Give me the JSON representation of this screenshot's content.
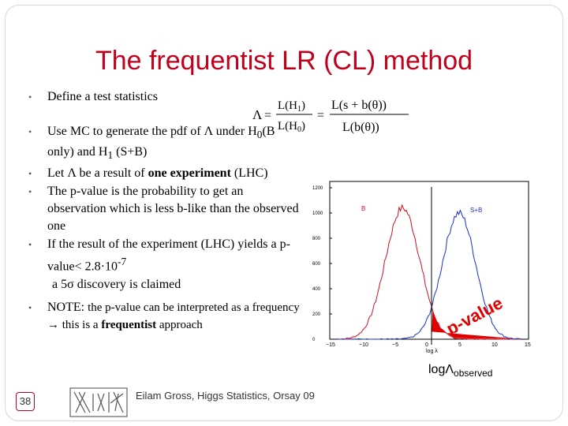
{
  "slide": {
    "title": "The frequentist LR (CL) method",
    "number": "38",
    "footer": "Eilam Gross, Higgs Statistics, Orsay 09"
  },
  "bullets": {
    "b1": "Define a test statistics",
    "b2_pre": "Use MC to generate the pdf of Λ under H",
    "b2_sub0": "0",
    "b2_mid": "(B only) and H",
    "b2_sub1": "1",
    "b2_post": " (S+B)",
    "b3_pre": "Let Λ be a result of ",
    "b3_bold": "one experiment",
    "b3_post": " (LHC)",
    "b4": "The p-value is the probability to get an observation which is less b-like than the observed one",
    "b5_line1": "If the result of the experiment (LHC) yields a p-value< 2.8·10",
    "b5_sup": "-7",
    "b5_line2": "a 5σ discovery is claimed",
    "b6_pre": "NOTE: ",
    "b6_a": "the p-value can be interpreted as a frequency",
    "b6_arrow": " → ",
    "b6_b": "this is a ",
    "b6_bold": "frequentist",
    "b6_c": " approach"
  },
  "formula": {
    "lambda": "Λ",
    "eq": "=",
    "lh1": "L(H",
    "sub1": "1",
    "lh0": "L(H",
    "sub0": "0",
    "close": ")",
    "num2": "L(s + b(θ))",
    "den2": "L(b(θ))"
  },
  "plot": {
    "y_ticks": [
      "1200",
      "1000",
      "800",
      "600",
      "400",
      "200",
      "0"
    ],
    "x_ticks": [
      "−15",
      "−10",
      "−5",
      "0",
      "5",
      "10",
      "15"
    ],
    "x_axis_label": "log λ",
    "label_b": "B",
    "label_sb": "S+B",
    "pvalue_text": "p-value",
    "colors": {
      "b": "#d01020",
      "sb": "#1a2fd0",
      "pvalue": "#e00000"
    }
  },
  "observed_label": {
    "main": "logΛ",
    "sub": "observed"
  }
}
